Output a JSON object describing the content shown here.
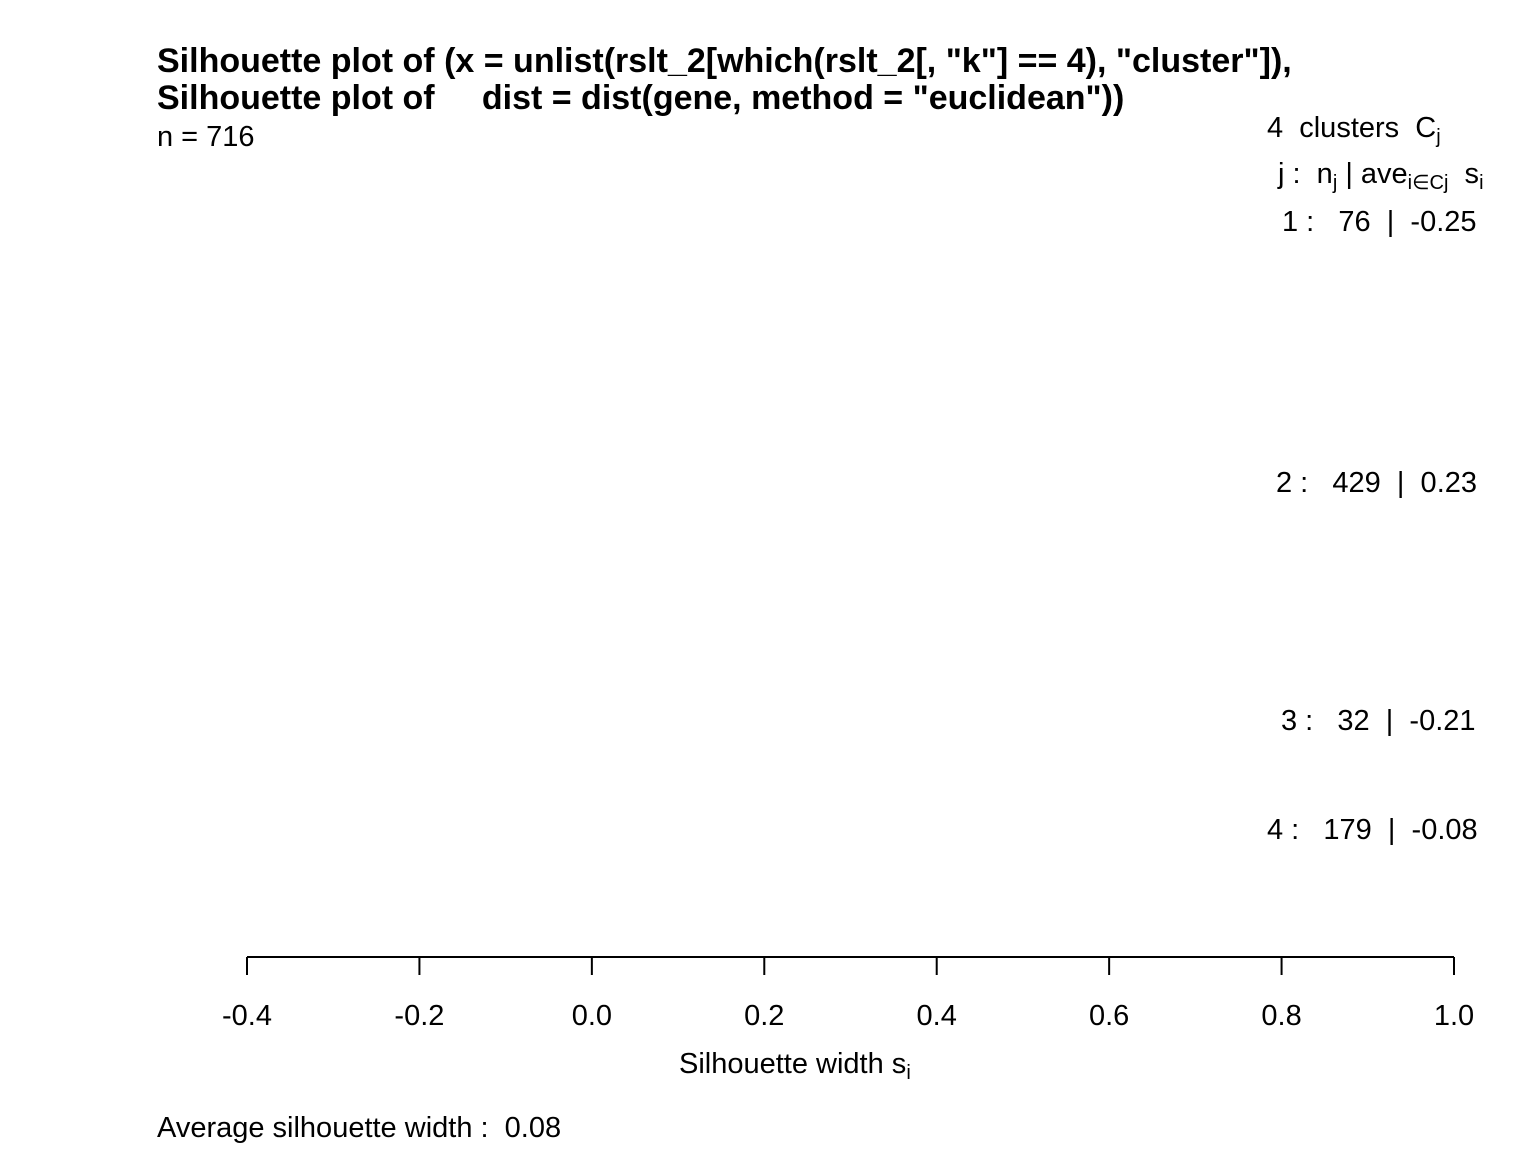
{
  "chart_data": {
    "type": "bar",
    "title_line_1": "Silhouette plot of (x = unlist(rslt_2[which(rslt_2[, \"k\"] == 4), \"cluster\"]),",
    "title_line_2": "Silhouette plot of     dist = dist(gene, method = \"euclidean\"))",
    "n_label": "n = 716",
    "legend": {
      "header_clusters": "4  clusters  C",
      "header_clusters_sub": "j",
      "header_cols_prefix": "j :  n",
      "header_cols_sub1": "j",
      "header_cols_mid": " | ave",
      "header_cols_sub2": "i∈Cj",
      "header_cols_s": "  s",
      "header_cols_sub3": "i"
    },
    "clusters": [
      {
        "label": "1 :   76  |  -0.25",
        "j": 1,
        "n": 76,
        "ave": -0.25
      },
      {
        "label": "2 :   429  |  0.23",
        "j": 2,
        "n": 429,
        "ave": 0.23
      },
      {
        "label": "3 :   32  |  -0.21",
        "j": 3,
        "n": 32,
        "ave": -0.21
      },
      {
        "label": "4 :   179  |  -0.08",
        "j": 4,
        "n": 179,
        "ave": -0.08
      }
    ],
    "xlabel": "Silhouette width s",
    "xlabel_sub": "i",
    "xlim": [
      -0.4,
      1.0
    ],
    "xticks": [
      -0.4,
      -0.2,
      0.0,
      0.2,
      0.4,
      0.6,
      0.8,
      1.0
    ],
    "xtick_labels": [
      "-0.4",
      "-0.2",
      "0.0",
      "0.2",
      "0.4",
      "0.6",
      "0.8",
      "1.0"
    ],
    "average_label": "Average silhouette width :  0.08",
    "average_silhouette_width": 0.08
  }
}
